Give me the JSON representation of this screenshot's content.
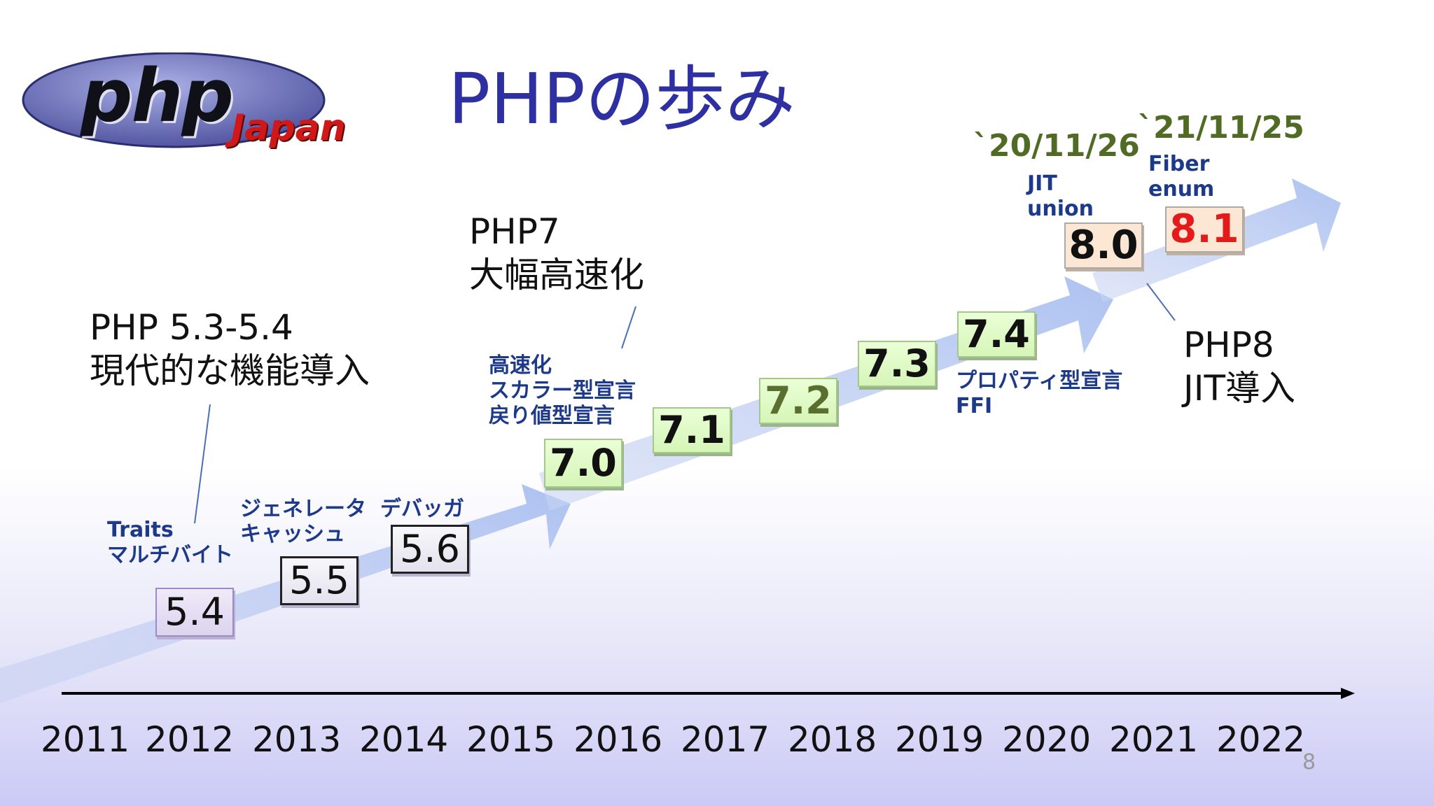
{
  "slide": {
    "title": "PHPの歩み",
    "page_number": "8"
  },
  "logo": {
    "php": "php",
    "japan": "Japan"
  },
  "notes": {
    "php53": [
      "PHP 5.3-5.4",
      "現代的な機能導入"
    ],
    "php7": [
      "PHP7",
      "大幅高速化"
    ],
    "php8": [
      "PHP8",
      "JIT導入"
    ]
  },
  "features": {
    "v54": [
      "Traits",
      "マルチバイト"
    ],
    "v55": [
      "ジェネレータ",
      "キャッシュ"
    ],
    "v56": [
      "デバッガ"
    ],
    "v70": [
      "高速化",
      "スカラー型宣言",
      "戻り値型宣言"
    ],
    "v74": [
      "プロパティ型宣言",
      "FFI"
    ],
    "v80": [
      "JIT",
      "union"
    ],
    "v81": [
      "Fiber",
      "enum"
    ]
  },
  "dates": {
    "v80": "`20/11/26",
    "v81": "`21/11/25"
  },
  "versions": [
    "5.4",
    "5.5",
    "5.6",
    "7.0",
    "7.1",
    "7.2",
    "7.3",
    "7.4",
    "8.0",
    "8.1"
  ],
  "years": [
    "2011",
    "2012",
    "2013",
    "2014",
    "2015",
    "2016",
    "2017",
    "2018",
    "2019",
    "2020",
    "2021",
    "2022"
  ],
  "colors": {
    "title": "#2e2fa0",
    "feature_text": "#1d3a8a",
    "date_text": "#4f6b24",
    "highlight_version": "#e31b1b"
  }
}
